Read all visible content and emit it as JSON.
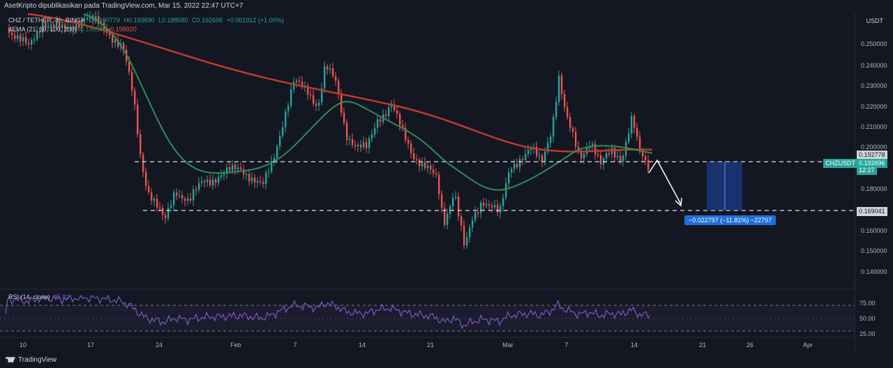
{
  "header": {
    "publisher": "AsetKripto dipublikasikan pada TradingView.com, Mar 15, 2022 22:47 UTC+7"
  },
  "legend": {
    "symbol": "CHZ / TETHER, 4h, BINGX",
    "open": "O0.190779",
    "high": "H0.193690",
    "low": "L0.188580",
    "close": "C0.192696",
    "change": "+0.001912 (+1.00%)",
    "ma_label": "4EMA (21, 50, 100, 200)",
    "ma_v1": "0.196594",
    "ma_v2": "0.198920"
  },
  "axis": {
    "unit": "USDT",
    "y_ticks": [
      "0.250000",
      "0.240000",
      "0.230000",
      "0.220000",
      "0.210000",
      "0.200000",
      "0.180000",
      "0.160000",
      "0.150000",
      "0.140000"
    ],
    "x_ticks": [
      "10",
      "17",
      "24",
      "Feb",
      "7",
      "14",
      "21",
      "Mar",
      "7",
      "14",
      "21",
      "26",
      "Apr"
    ]
  },
  "price_tags": {
    "upper_line": "0.192778",
    "symbol_tag": "CHZUSDT",
    "last_price": "0.192696",
    "countdown": "12:27",
    "lower_line": "0.169041"
  },
  "measure": {
    "label": "−0.022797 (−11.81%) −22797"
  },
  "rsi": {
    "label": "RSI (14, close)",
    "value": "45.82",
    "ticks": [
      "75.00",
      "50.00",
      "25.00"
    ]
  },
  "footer": {
    "brand": "TradingView"
  },
  "colors": {
    "bg": "#131722",
    "up": "#26a69a",
    "down": "#ef5350",
    "ema_fast": "#2e8b57",
    "ema_slow": "#c0392b",
    "rsi": "#7e57c2",
    "accent": "#2962ff"
  }
}
